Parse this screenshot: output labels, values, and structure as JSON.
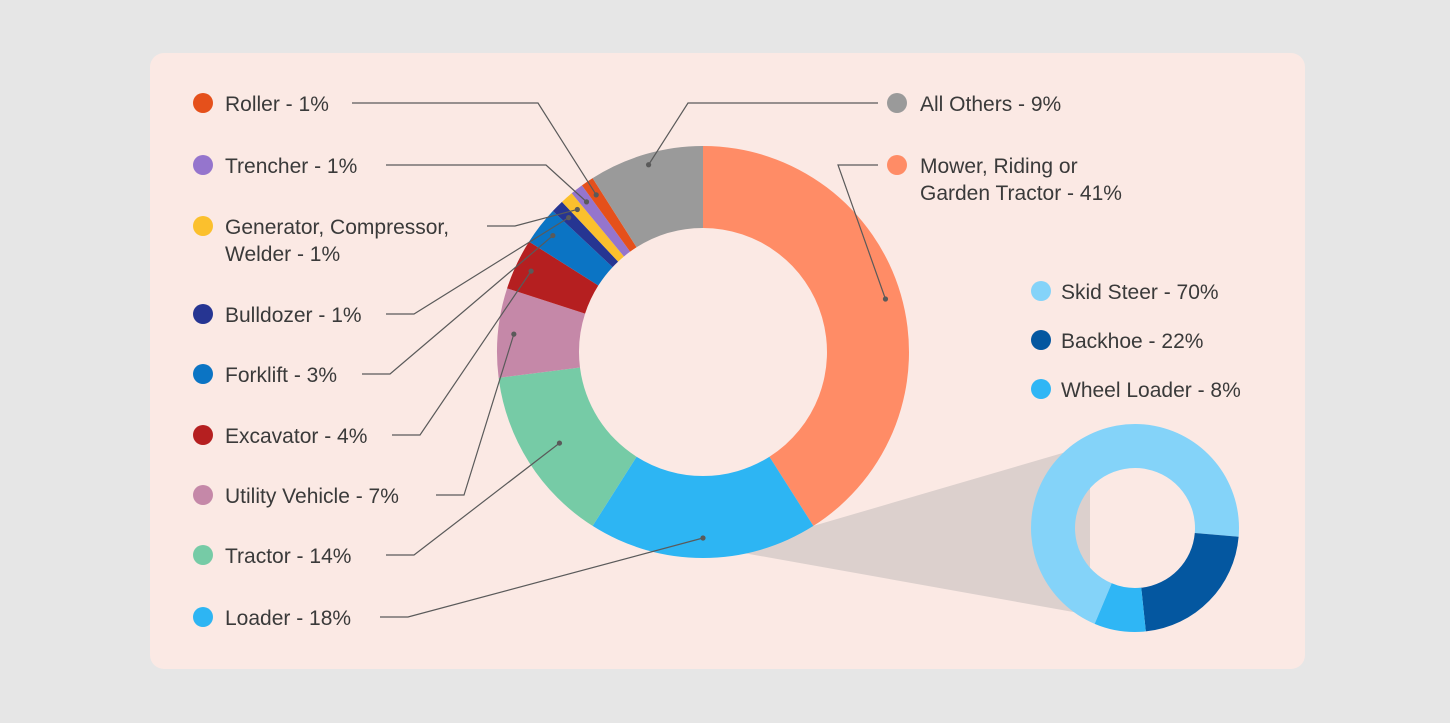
{
  "chart_data": [
    {
      "type": "pie",
      "series": [
        {
          "name": "Mower, Riding or Garden Tractor",
          "lines": [
            "Mower, Riding or",
            "Garden Tractor - 41%"
          ],
          "value": 41,
          "color": "#ff8c66"
        },
        {
          "name": "Loader",
          "lines": [
            "Loader - 18%"
          ],
          "value": 18,
          "color": "#2db5f3"
        },
        {
          "name": "Tractor",
          "lines": [
            "Tractor - 14%"
          ],
          "value": 14,
          "color": "#76cba6"
        },
        {
          "name": "Utility Vehicle",
          "lines": [
            "Utility Vehicle - 7%"
          ],
          "value": 7,
          "color": "#c588a8"
        },
        {
          "name": "Excavator",
          "lines": [
            "Excavator - 4%"
          ],
          "value": 4,
          "color": "#b51f20"
        },
        {
          "name": "Forklift",
          "lines": [
            "Forklift - 3%"
          ],
          "value": 3,
          "color": "#0b74c4"
        },
        {
          "name": "Bulldozer",
          "lines": [
            "Bulldozer - 1%"
          ],
          "value": 1,
          "color": "#263592"
        },
        {
          "name": "Generator, Compressor, Welder",
          "lines": [
            "Generator, Compressor,",
            "Welder - 1%"
          ],
          "value": 1,
          "color": "#fbc02d"
        },
        {
          "name": "Trencher",
          "lines": [
            "Trencher - 1%"
          ],
          "value": 1,
          "color": "#9575cd"
        },
        {
          "name": "Roller",
          "lines": [
            "Roller - 1%"
          ],
          "value": 1,
          "color": "#e5501b"
        },
        {
          "name": "All Others",
          "lines": [
            "All Others - 9%"
          ],
          "value": 9,
          "color": "#9a9a9a"
        }
      ]
    },
    {
      "type": "pie",
      "breakdown_of": "Loader",
      "series": [
        {
          "name": "Skid Steer",
          "lines": [
            "Skid Steer - 70%"
          ],
          "value": 70,
          "color": "#84d3f9"
        },
        {
          "name": "Backhoe",
          "lines": [
            "Backhoe - 22%"
          ],
          "value": 22,
          "color": "#0457a0"
        },
        {
          "name": "Wheel Loader",
          "lines": [
            "Wheel Loader - 8%"
          ],
          "value": 8,
          "color": "#2fb6f5"
        }
      ]
    }
  ],
  "colors": {
    "background": "#e6e6e6",
    "panel": "#fbe9e4",
    "connector": "#5a5a5a",
    "zoom_wedge": "#dcd0cd"
  }
}
